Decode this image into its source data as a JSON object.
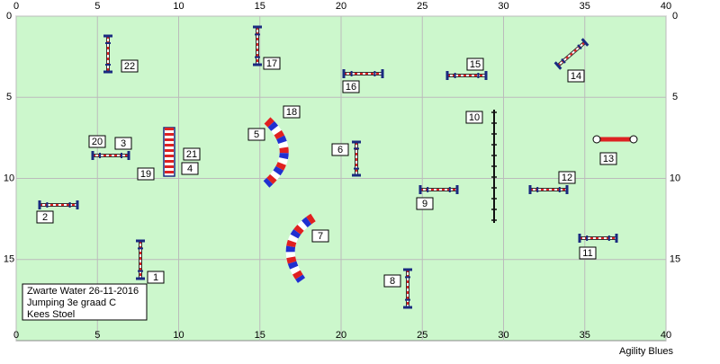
{
  "axes": {
    "x_ticks": [
      0,
      5,
      10,
      15,
      20,
      25,
      30,
      35,
      40
    ],
    "y_ticks": [
      0,
      5,
      10,
      15
    ]
  },
  "labels": [
    "1",
    "2",
    "3",
    "4",
    "5",
    "6",
    "7",
    "8",
    "9",
    "10",
    "11",
    "12",
    "13",
    "14",
    "15",
    "16",
    "17",
    "18",
    "19",
    "20",
    "21",
    "22"
  ],
  "info": [
    "Zwarte Water 26-11-2016",
    "Jumping 3e graad C",
    "Kees Stoel"
  ],
  "footer": "Agility Blues"
}
